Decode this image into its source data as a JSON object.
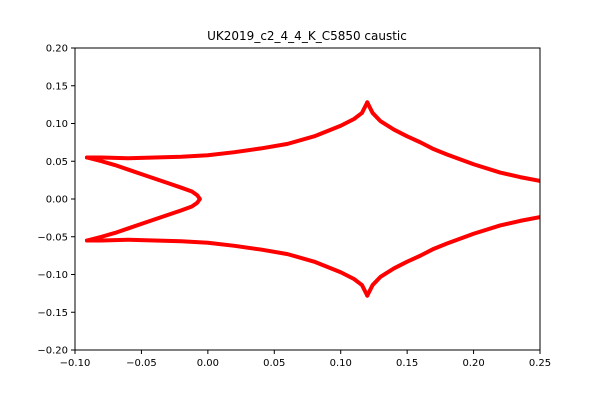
{
  "chart_data": {
    "type": "line",
    "title": "UK2019_c2_4_4_K_C5850 caustic",
    "xlabel": "",
    "ylabel": "",
    "xlim": [
      -0.1,
      0.25
    ],
    "ylim": [
      -0.2,
      0.2
    ],
    "x_ticks": [
      "−0.10",
      "−0.05",
      "0.00",
      "0.05",
      "0.10",
      "0.15",
      "0.20",
      "0.25"
    ],
    "y_ticks": [
      "0.20",
      "0.15",
      "0.10",
      "0.05",
      "0.00",
      "−0.05",
      "−0.10",
      "−0.15",
      "−0.20"
    ],
    "grid": false,
    "series_color": "#ff0000",
    "series": [
      {
        "points": [
          [
            -0.091,
            0.055
          ],
          [
            -0.08,
            0.055
          ],
          [
            -0.06,
            0.054
          ],
          [
            -0.04,
            0.055
          ],
          [
            -0.02,
            0.056
          ],
          [
            0.0,
            0.058
          ],
          [
            0.02,
            0.062
          ],
          [
            0.04,
            0.067
          ],
          [
            0.06,
            0.073
          ],
          [
            0.08,
            0.083
          ],
          [
            0.1,
            0.097
          ],
          [
            0.11,
            0.106
          ],
          [
            0.116,
            0.114
          ],
          [
            0.12,
            0.128
          ]
        ]
      },
      {
        "points": [
          [
            0.12,
            0.128
          ],
          [
            0.124,
            0.114
          ],
          [
            0.13,
            0.103
          ],
          [
            0.14,
            0.092
          ],
          [
            0.15,
            0.083
          ],
          [
            0.16,
            0.075
          ],
          [
            0.17,
            0.066
          ],
          [
            0.18,
            0.059
          ],
          [
            0.2,
            0.046
          ],
          [
            0.22,
            0.035
          ],
          [
            0.235,
            0.029
          ],
          [
            0.25,
            0.024
          ]
        ]
      },
      {
        "points": [
          [
            -0.091,
            -0.055
          ],
          [
            -0.08,
            -0.055
          ],
          [
            -0.06,
            -0.054
          ],
          [
            -0.04,
            -0.055
          ],
          [
            -0.02,
            -0.056
          ],
          [
            0.0,
            -0.058
          ],
          [
            0.02,
            -0.062
          ],
          [
            0.04,
            -0.067
          ],
          [
            0.06,
            -0.073
          ],
          [
            0.08,
            -0.083
          ],
          [
            0.1,
            -0.097
          ],
          [
            0.11,
            -0.106
          ],
          [
            0.116,
            -0.114
          ],
          [
            0.12,
            -0.128
          ]
        ]
      },
      {
        "points": [
          [
            0.12,
            -0.128
          ],
          [
            0.124,
            -0.114
          ],
          [
            0.13,
            -0.103
          ],
          [
            0.14,
            -0.092
          ],
          [
            0.15,
            -0.083
          ],
          [
            0.16,
            -0.075
          ],
          [
            0.17,
            -0.066
          ],
          [
            0.18,
            -0.059
          ],
          [
            0.2,
            -0.046
          ],
          [
            0.22,
            -0.035
          ],
          [
            0.235,
            -0.029
          ],
          [
            0.25,
            -0.024
          ]
        ]
      },
      {
        "points": [
          [
            -0.091,
            0.055
          ],
          [
            -0.08,
            0.05
          ],
          [
            -0.07,
            0.045
          ],
          [
            -0.06,
            0.039
          ],
          [
            -0.05,
            0.033
          ],
          [
            -0.04,
            0.027
          ],
          [
            -0.03,
            0.021
          ],
          [
            -0.02,
            0.015
          ],
          [
            -0.012,
            0.01
          ],
          [
            -0.008,
            0.005
          ],
          [
            -0.006,
            0.0
          ],
          [
            -0.008,
            -0.005
          ],
          [
            -0.012,
            -0.01
          ],
          [
            -0.02,
            -0.015
          ],
          [
            -0.03,
            -0.021
          ],
          [
            -0.04,
            -0.027
          ],
          [
            -0.05,
            -0.033
          ],
          [
            -0.06,
            -0.039
          ],
          [
            -0.07,
            -0.045
          ],
          [
            -0.08,
            -0.05
          ],
          [
            -0.091,
            -0.055
          ]
        ]
      }
    ]
  }
}
